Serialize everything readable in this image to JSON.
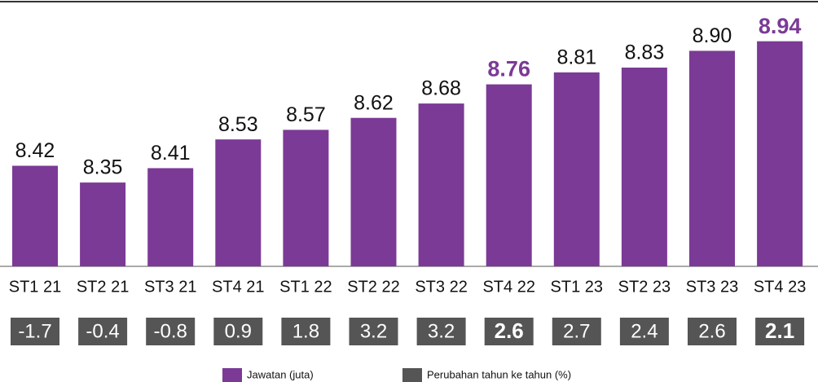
{
  "chart_data": {
    "type": "bar",
    "categories": [
      "ST1 21",
      "ST2 21",
      "ST3 21",
      "ST4 21",
      "ST1 22",
      "ST2 22",
      "ST3 22",
      "ST4 22",
      "ST1 23",
      "ST2 23",
      "ST3 23",
      "ST4 23"
    ],
    "series": [
      {
        "name": "Jawatan (juta)",
        "color": "#7b3a96",
        "values": [
          8.42,
          8.35,
          8.41,
          8.53,
          8.57,
          8.62,
          8.68,
          8.76,
          8.81,
          8.83,
          8.9,
          8.94
        ],
        "value_labels": [
          "8.42",
          "8.35",
          "8.41",
          "8.53",
          "8.57",
          "8.62",
          "8.68",
          "8.76",
          "8.81",
          "8.83",
          "8.90",
          "8.94"
        ]
      },
      {
        "name": "Perubahan tahun ke tahun (%)",
        "color": "#555555",
        "values": [
          -1.7,
          -0.4,
          -0.8,
          0.9,
          1.8,
          3.2,
          3.2,
          2.6,
          2.7,
          2.4,
          2.6,
          2.1
        ]
      }
    ],
    "highlight": [
      7,
      11
    ],
    "ylim": [
      8,
      9
    ]
  }
}
